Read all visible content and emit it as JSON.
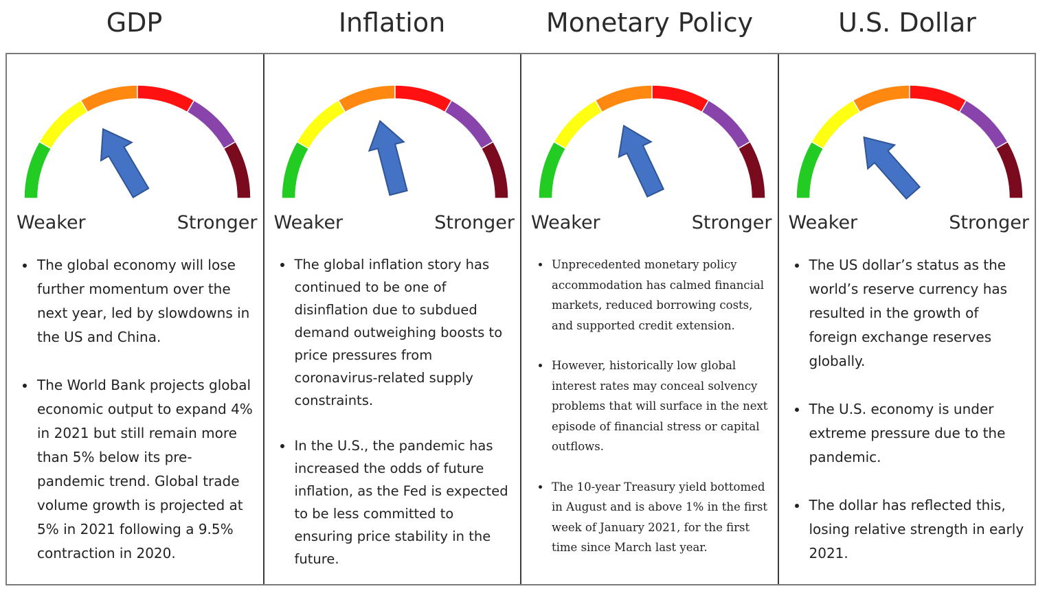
{
  "titles": [
    "GDP",
    "Inflation",
    "Monetary Policy",
    "U.S. Dollar"
  ],
  "colors": {
    "segments": [
      "#22cc22",
      "#ffff11",
      "#ff8811",
      "#ff1111",
      "#8844aa",
      "#7a0a1e"
    ],
    "needle": "#4472c4"
  },
  "gauges": [
    {
      "name": "GDP",
      "needle_level": 0.33
    },
    {
      "name": "Inflation",
      "needle_level": 0.42
    },
    {
      "name": "Monetary Policy",
      "needle_level": 0.36
    },
    {
      "name": "U.S. Dollar",
      "needle_level": 0.27
    }
  ],
  "scale": {
    "left": "Weaker",
    "right": "Stronger"
  },
  "panels": [
    {
      "bullets": [
        "The global economy will lose further momentum over the next year, led by slowdowns in the US and China.",
        "The World Bank projects global economic output to expand 4% in 2021 but still remain more than 5% below its pre-pandemic trend. Global trade volume growth is projected at 5% in 2021 following a 9.5% contraction in 2020."
      ]
    },
    {
      "bullets": [
        "The global inflation story has continued to be one of disinflation due to subdued demand outweighing boosts to price pressures from coronavirus-related supply constraints.",
        "In the U.S., the pandemic has increased the odds of future inflation, as the Fed is expected to be less committed to ensuring price stability in the future."
      ]
    },
    {
      "bullets": [
        "Unprecedented monetary policy accommodation has calmed financial markets, reduced borrowing costs, and supported credit extension.",
        "However, historically low global interest rates may conceal solvency problems that will surface in the next episode of financial stress or capital outflows.",
        "The 10-year Treasury yield bottomed in August and is above 1% in the first week of January 2021, for the first time since March last year."
      ]
    },
    {
      "bullets": [
        "The US dollar’s status as the world’s reserve currency has resulted in the growth of foreign exchange reserves globally.",
        "The U.S. economy is under extreme pressure due to the pandemic.",
        "The dollar has reflected this, losing relative strength in early 2021."
      ]
    }
  ]
}
